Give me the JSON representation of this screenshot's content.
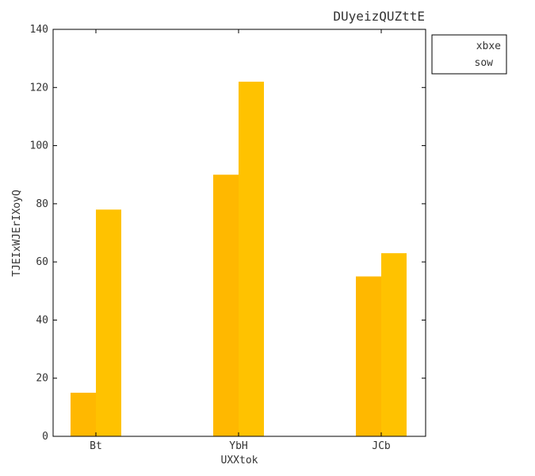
{
  "chart_data": {
    "type": "bar",
    "title": "DUyeizQUZttE",
    "xlabel": "UXXtok",
    "ylabel": "TJEIxWJErIXoyQ",
    "categories": [
      "Bt",
      "YbH",
      "JCb"
    ],
    "series": [
      {
        "name": "xbxe",
        "values": [
          15,
          90,
          55
        ],
        "color": "#FFB800"
      },
      {
        "name": "sow",
        "values": [
          78,
          122,
          63
        ],
        "color": "#FFC200"
      }
    ],
    "ylim": [
      0,
      140
    ],
    "yticks": [
      0,
      20,
      40,
      60,
      80,
      100,
      120,
      140
    ],
    "grid": false,
    "legend_position": "outside-top-right"
  }
}
